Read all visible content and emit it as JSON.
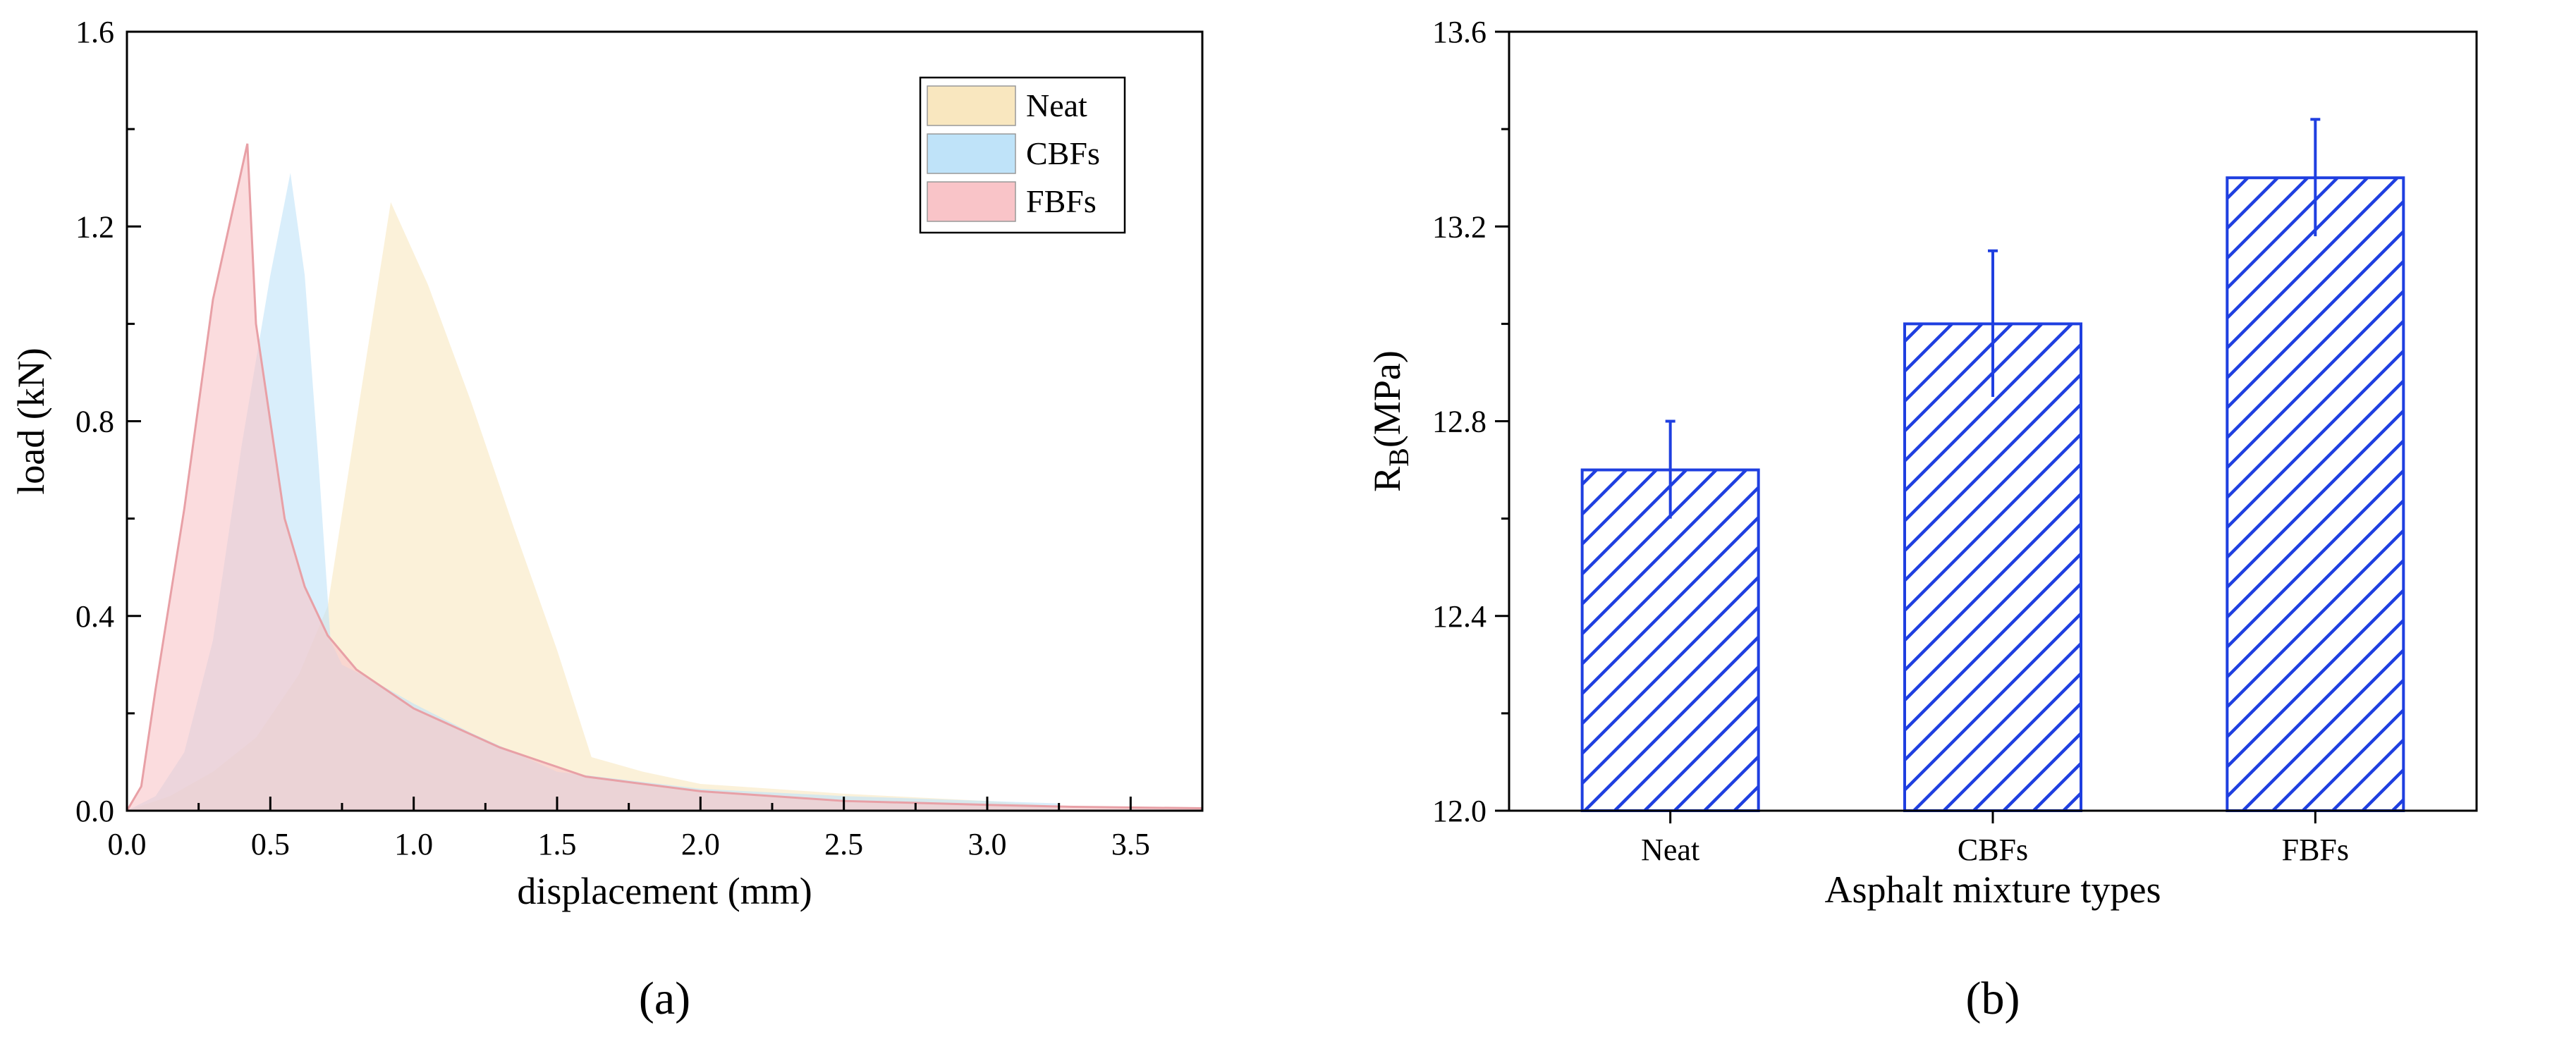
{
  "chart_data": [
    {
      "type": "area",
      "xlabel": "displacement (mm)",
      "ylabel": "load (kN)",
      "xlim": [
        0,
        3.75
      ],
      "ylim": [
        0,
        1.6
      ],
      "xticks": [
        0.0,
        0.5,
        1.0,
        1.5,
        2.0,
        2.5,
        3.0,
        3.5
      ],
      "xtick_labels": [
        "0.0",
        "0.5",
        "1.0",
        "1.5",
        "2.0",
        "2.5",
        "3.0",
        "3.5"
      ],
      "yticks": [
        0.0,
        0.4,
        0.8,
        1.2,
        1.6
      ],
      "ytick_labels": [
        "0.0",
        "0.4",
        "0.8",
        "1.2",
        "1.6"
      ],
      "grid": false,
      "legend_position": "top-right",
      "panel_label": "a",
      "series": [
        {
          "name": "Neat",
          "color": "#f9e7bf",
          "x": [
            0.0,
            0.15,
            0.3,
            0.45,
            0.6,
            0.7,
            0.8,
            0.92,
            1.05,
            1.2,
            1.35,
            1.5,
            1.62,
            1.8,
            2.0,
            2.5,
            3.0,
            3.25
          ],
          "y": [
            0.0,
            0.03,
            0.08,
            0.15,
            0.28,
            0.42,
            0.8,
            1.25,
            1.08,
            0.84,
            0.58,
            0.33,
            0.11,
            0.08,
            0.055,
            0.035,
            0.02,
            0.01
          ]
        },
        {
          "name": "CBFs",
          "color": "#bfe3f9",
          "x": [
            0.0,
            0.1,
            0.2,
            0.3,
            0.4,
            0.5,
            0.57,
            0.62,
            0.67,
            0.71,
            0.75,
            0.85,
            1.0,
            1.2,
            1.5,
            2.0,
            2.5,
            3.0,
            3.25
          ],
          "y": [
            0.0,
            0.03,
            0.12,
            0.35,
            0.75,
            1.1,
            1.31,
            1.1,
            0.7,
            0.35,
            0.3,
            0.27,
            0.22,
            0.16,
            0.08,
            0.045,
            0.03,
            0.02,
            0.015
          ]
        },
        {
          "name": "FBFs",
          "color": "#f9c4c8",
          "x": [
            0.0,
            0.05,
            0.1,
            0.2,
            0.3,
            0.42,
            0.45,
            0.5,
            0.55,
            0.62,
            0.7,
            0.8,
            1.0,
            1.3,
            1.6,
            2.0,
            2.5,
            3.0,
            3.3,
            3.75
          ],
          "y": [
            0.0,
            0.05,
            0.25,
            0.62,
            1.05,
            1.37,
            1.0,
            0.8,
            0.6,
            0.46,
            0.36,
            0.29,
            0.21,
            0.13,
            0.07,
            0.04,
            0.02,
            0.012,
            0.008,
            0.005
          ]
        }
      ]
    },
    {
      "type": "bar",
      "categories": [
        "Neat",
        "CBFs",
        "FBFs"
      ],
      "values": [
        12.7,
        13.0,
        13.3
      ],
      "errors": [
        0.1,
        0.15,
        0.12
      ],
      "xlabel": "Asphalt mixture types",
      "ylabel_main": "R",
      "ylabel_sub": "B",
      "ylabel_unit": "(MPa)",
      "ylim": [
        12.0,
        13.6
      ],
      "yticks": [
        12.0,
        12.4,
        12.8,
        13.2,
        13.6
      ],
      "ytick_labels": [
        "12.0",
        "12.4",
        "12.8",
        "13.2",
        "13.6"
      ],
      "bar_color": "#1f3fe0",
      "bar_fill": "diagonal-hatch",
      "grid": false,
      "panel_label": "b"
    }
  ]
}
